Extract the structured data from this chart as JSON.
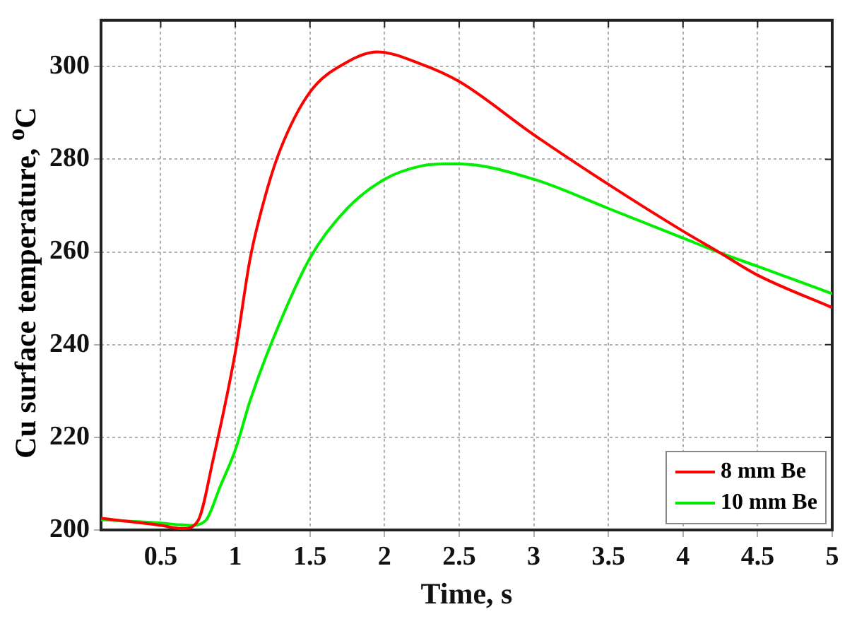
{
  "chart_data": {
    "type": "line",
    "xlabel": "Time, s",
    "ylabel": "Cu surface temperature, $^{o}$C",
    "xlim": [
      0.1,
      5
    ],
    "xticks": [
      0.5,
      1,
      1.5,
      2,
      2.5,
      3,
      3.5,
      4,
      4.5,
      5
    ],
    "ylim": [
      200,
      310
    ],
    "yticks": [
      200,
      220,
      240,
      260,
      280,
      300
    ],
    "grid": true,
    "legend": "bottom right",
    "marker": "none",
    "line_style": "solid",
    "series": [
      {
        "name": "8 mm Be",
        "color": "#ff0000",
        "x": [
          0.1,
          0.5,
          0.65,
          0.75,
          0.85,
          1,
          1.1,
          1.2,
          1.3,
          1.5,
          1.75,
          1.95,
          2.25,
          2.5,
          3,
          3.5,
          4,
          4.25,
          4.5,
          5
        ],
        "values": [
          202.5,
          201,
          200.3,
          202,
          215,
          238.4,
          258.7,
          272,
          282,
          294.5,
          301,
          303.2,
          300.5,
          296.8,
          285.3,
          274.6,
          264.5,
          259.8,
          255,
          248
        ]
      },
      {
        "name": "10 mm Be",
        "color": "#00ee00",
        "x": [
          0.1,
          0.5,
          0.7,
          0.8,
          0.9,
          1,
          1.1,
          1.25,
          1.5,
          1.75,
          2,
          2.25,
          2.4,
          2.5,
          3,
          3.5,
          4,
          4.25,
          4.5,
          5
        ],
        "values": [
          202.2,
          201.5,
          201,
          202,
          209.5,
          217.3,
          228,
          241,
          258.7,
          269.4,
          275.7,
          278.6,
          279,
          279,
          275.7,
          269.4,
          263,
          259.8,
          256.9,
          251
        ]
      }
    ]
  }
}
